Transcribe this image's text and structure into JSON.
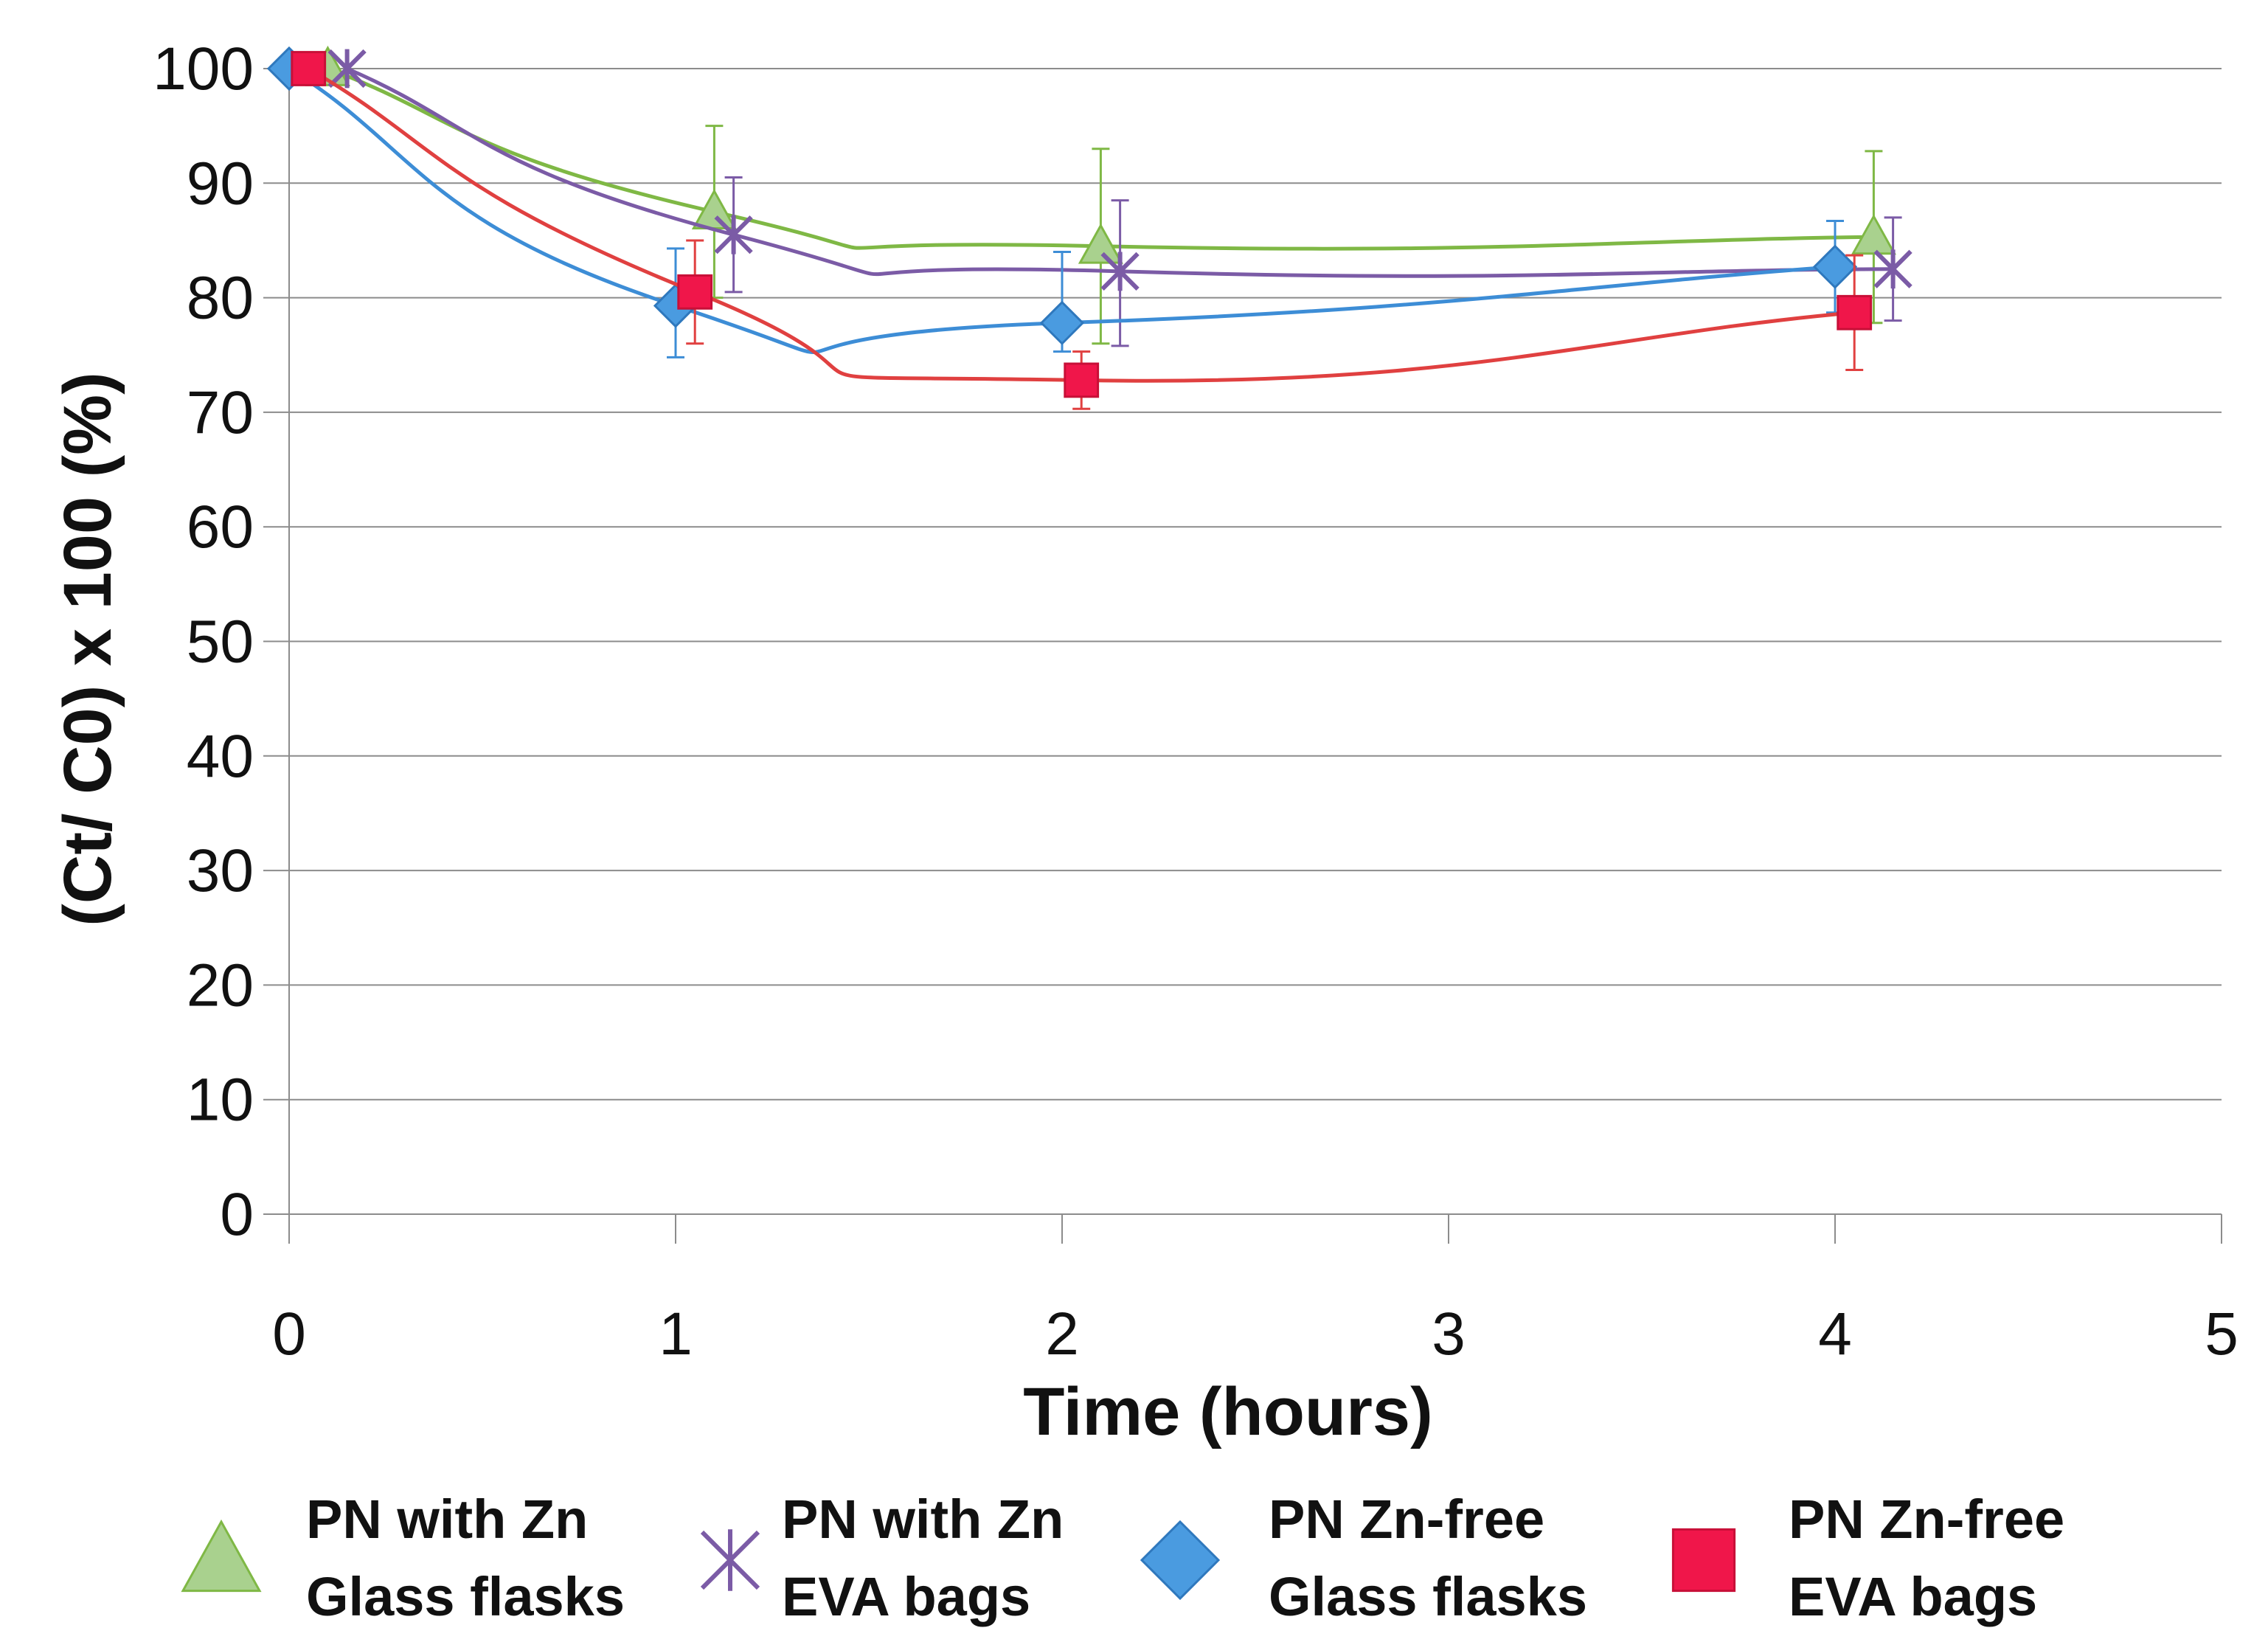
{
  "chart_data": {
    "type": "line",
    "title": "",
    "xlabel": "Time (hours)",
    "ylabel": "(Ct/ C0) x 100 (%)",
    "xlim": [
      0,
      5
    ],
    "ylim": [
      0,
      100
    ],
    "x_ticks": [
      "0",
      "1",
      "2",
      "3",
      "4",
      "5"
    ],
    "y_ticks": [
      "0",
      "10",
      "20",
      "30",
      "40",
      "50",
      "60",
      "70",
      "80",
      "90",
      "100"
    ],
    "grid": "horizontal",
    "legend_position": "bottom",
    "series": [
      {
        "name": "PN with Zn Glass flasks",
        "legend_line1": "PN with Zn",
        "legend_line2": "Glass flasks",
        "color": "#7FB845",
        "fill": "#A9D18E",
        "marker": "triangle",
        "x": [
          0.1,
          1.1,
          2.1,
          4.1
        ],
        "y": [
          100,
          87.5,
          84.5,
          85.3
        ],
        "err_up": [
          0,
          7.5,
          8.5,
          7.5
        ],
        "err_down": [
          0,
          7.5,
          8.5,
          7.5
        ]
      },
      {
        "name": "PN with Zn EVA bags",
        "legend_line1": "PN with Zn",
        "legend_line2": "EVA bags",
        "color": "#7B5BA6",
        "fill": "#7B5BA6",
        "marker": "star",
        "x": [
          0.15,
          1.15,
          2.15,
          4.15
        ],
        "y": [
          100,
          85.5,
          82.3,
          82.5
        ],
        "err_up": [
          0,
          5,
          6.2,
          4.5
        ],
        "err_down": [
          0,
          5,
          6.5,
          4.5
        ]
      },
      {
        "name": "PN Zn-free Glass flasks",
        "legend_line1": "PN Zn-free",
        "legend_line2": "Glass flasks",
        "color": "#3D8DD6",
        "fill": "#4A9BE0",
        "marker": "diamond",
        "x": [
          0,
          1,
          2,
          4
        ],
        "y": [
          100,
          79.3,
          77.8,
          82.7
        ],
        "err_up": [
          0,
          5,
          6.2,
          4
        ],
        "err_down": [
          0,
          4.5,
          2.5,
          4
        ]
      },
      {
        "name": "PN Zn-free EVA bags",
        "legend_line1": "PN Zn-free",
        "legend_line2": "EVA bags",
        "color": "#E04040",
        "fill": "#F0164A",
        "marker": "square",
        "x": [
          0.05,
          1.05,
          2.05,
          4.05
        ],
        "y": [
          100,
          80.5,
          72.8,
          78.7
        ],
        "err_up": [
          0,
          4.5,
          2.5,
          5
        ],
        "err_down": [
          0,
          4.5,
          2.5,
          5
        ]
      }
    ]
  }
}
